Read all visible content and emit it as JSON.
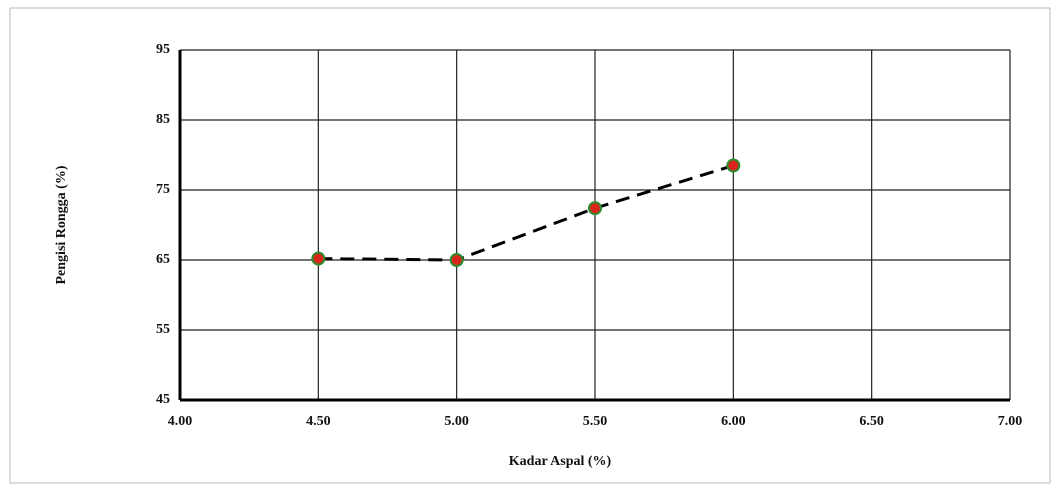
{
  "chart_data": {
    "type": "line",
    "x_label": "Kadar Aspal (%)",
    "y_label": "Pengisi Rongga (%)",
    "x": [
      4.5,
      5.0,
      5.5,
      6.0
    ],
    "series": [
      {
        "values": [
          65.2,
          65.0,
          72.4,
          78.5
        ],
        "color": "#000000",
        "marker_color": "#d9261c",
        "marker_edge": "#2e8b2e",
        "dashed": true
      }
    ],
    "xlim": [
      4.0,
      7.0
    ],
    "xticks": [
      {
        "value": 4.0,
        "label": "4.00"
      },
      {
        "value": 4.5,
        "label": "4.50"
      },
      {
        "value": 5.0,
        "label": "5.00"
      },
      {
        "value": 5.5,
        "label": "5.50"
      },
      {
        "value": 6.0,
        "label": "6.00"
      },
      {
        "value": 6.5,
        "label": "6.50"
      },
      {
        "value": 7.0,
        "label": "7.00"
      }
    ],
    "ylim": [
      45,
      95
    ],
    "yticks": [
      45,
      55,
      65,
      75,
      85,
      95
    ],
    "grid": true
  }
}
